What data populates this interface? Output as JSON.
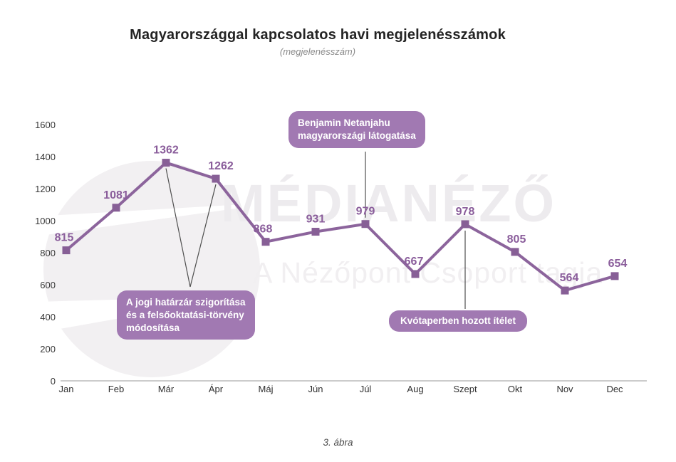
{
  "header": {
    "title": "Magyarországgal kapcsolatos havi megjelenésszámok",
    "subtitle": "(megjelenésszám)"
  },
  "watermark": {
    "brand": "MÉDIANÉZŐ",
    "tagline": "A Nézőpont Csoport tagja"
  },
  "caption": "3. ábra",
  "colors": {
    "line": "#8c649c",
    "marker": "#875f96",
    "value_label": "#8a5d9b",
    "callout_bg": "#a179b2",
    "callout_text": "#ffffff",
    "connector": "#4f4f4f",
    "axis_line": "#cccccc",
    "tick_text": "#3a3a3a",
    "watermark": "#edebee"
  },
  "chart_data": {
    "type": "line",
    "title": "Magyarországgal kapcsolatos havi megjelenésszámok",
    "subtitle": "(megjelenésszám)",
    "xlabel": "",
    "ylabel": "",
    "categories": [
      "Jan",
      "Feb",
      "Már",
      "Ápr",
      "Máj",
      "Jún",
      "Júl",
      "Aug",
      "Szept",
      "Okt",
      "Nov",
      "Dec"
    ],
    "values": [
      815,
      1081,
      1362,
      1262,
      868,
      931,
      979,
      667,
      978,
      805,
      564,
      654
    ],
    "ylim": [
      0,
      1600
    ],
    "yticks": [
      0,
      200,
      400,
      600,
      800,
      1000,
      1200,
      1400,
      1600
    ],
    "grid": false,
    "legend": "none",
    "marker": "square",
    "annotations": [
      {
        "id": "netanjahu-visit",
        "lines": [
          "Benjamin Netanjahu",
          "magyarországi látogatása"
        ],
        "target_months": [
          "Júl"
        ]
      },
      {
        "id": "border-law",
        "lines": [
          "A jogi határzár szigorítása",
          "és a felsőoktatási-törvény",
          "módosítása"
        ],
        "target_months": [
          "Már",
          "Ápr"
        ]
      },
      {
        "id": "quota-ruling",
        "lines": [
          "Kvótaperben hozott ítélet"
        ],
        "target_months": [
          "Szept"
        ]
      }
    ]
  }
}
